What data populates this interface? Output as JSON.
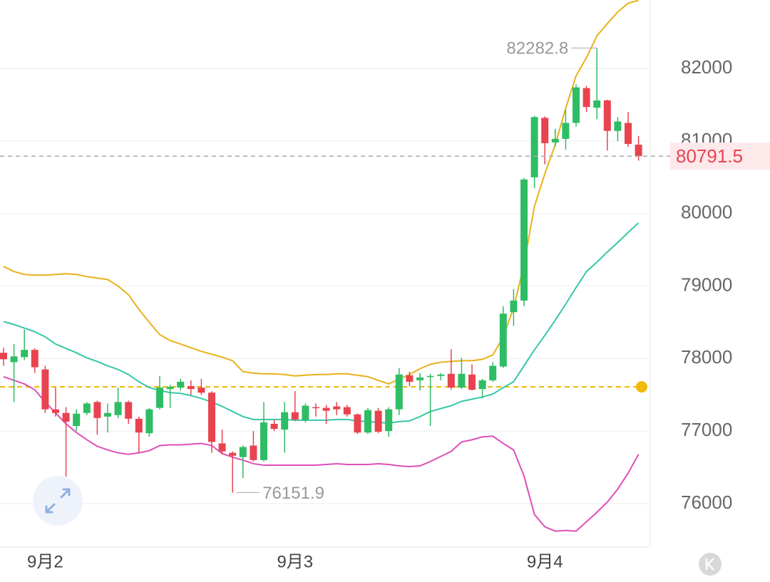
{
  "chart_data": {
    "type": "candlestick",
    "categories": [
      null,
      null,
      null,
      null,
      "9月2",
      null,
      null,
      null,
      null,
      null,
      null,
      null,
      null,
      null,
      null,
      null,
      null,
      null,
      null,
      null,
      null,
      null,
      null,
      null,
      null,
      null,
      null,
      null,
      "9月3",
      null,
      null,
      null,
      null,
      null,
      null,
      null,
      null,
      null,
      null,
      null,
      null,
      null,
      null,
      null,
      null,
      null,
      null,
      null,
      null,
      null,
      null,
      null,
      "9月4",
      null,
      null,
      null,
      null,
      null,
      null,
      null,
      null,
      null
    ],
    "open": [
      78080,
      77950,
      78020,
      78120,
      77850,
      77300,
      77250,
      77070,
      77250,
      77400,
      77200,
      77220,
      77400,
      77170,
      76970,
      77320,
      77580,
      77600,
      77620,
      77600,
      77530,
      76830,
      76700,
      76640,
      76800,
      76600,
      77100,
      77020,
      77260,
      77150,
      77330,
      77320,
      77340,
      77330,
      77230,
      76980,
      77280,
      77000,
      77300,
      77770,
      77700,
      77750,
      77760,
      77790,
      77600,
      77780,
      77580,
      77700,
      77890,
      78640,
      78800,
      80500,
      81320,
      80980,
      81030,
      81250,
      81730,
      81460,
      81560,
      81140,
      81250,
      80950
    ],
    "high": [
      78150,
      78200,
      78400,
      78140,
      77900,
      77600,
      77330,
      77300,
      77400,
      77420,
      77380,
      77600,
      77420,
      77200,
      77320,
      77760,
      77640,
      77720,
      77700,
      77720,
      77550,
      77020,
      76720,
      76800,
      77000,
      77400,
      77160,
      77400,
      77550,
      77380,
      77380,
      77360,
      77400,
      77360,
      77240,
      77320,
      77320,
      77330,
      77870,
      77820,
      77800,
      77790,
      77800,
      78130,
      78010,
      77920,
      77720,
      77950,
      78720,
      78960,
      80490,
      81350,
      81340,
      81170,
      81430,
      81780,
      81760,
      82282.8,
      81570,
      81330,
      81400,
      81070
    ],
    "low": [
      77900,
      77400,
      77980,
      77800,
      77250,
      77200,
      76370,
      77000,
      77220,
      76950,
      76980,
      77180,
      77100,
      76700,
      76920,
      77300,
      77320,
      77560,
      77500,
      77500,
      76700,
      76680,
      76151.9,
      76350,
      76580,
      76580,
      77000,
      76700,
      77140,
      77120,
      77200,
      77100,
      77220,
      77200,
      76960,
      76960,
      76970,
      76920,
      77220,
      77620,
      77560,
      77070,
      77700,
      77570,
      77580,
      77560,
      77450,
      77680,
      77870,
      78450,
      78720,
      80350,
      80680,
      80920,
      80880,
      81200,
      81400,
      81300,
      80870,
      81000,
      80920,
      80730
    ],
    "close": [
      77990,
      78030,
      78120,
      77880,
      77300,
      77250,
      77130,
      77240,
      77380,
      77180,
      77250,
      77400,
      77170,
      76980,
      77300,
      77600,
      77610,
      77680,
      77580,
      77530,
      76850,
      76720,
      76660,
      76780,
      76600,
      77120,
      77030,
      77260,
      77160,
      77350,
      77320,
      77280,
      77300,
      77230,
      76980,
      77290,
      76990,
      77300,
      77780,
      77680,
      77740,
      77760,
      77780,
      77600,
      77790,
      77570,
      77700,
      77900,
      78620,
      78800,
      80470,
      81330,
      80970,
      81030,
      81250,
      81740,
      81470,
      81560,
      81140,
      81270,
      80960,
      80791.5
    ],
    "up_color": "#2ebd64",
    "down_color": "#e8434f",
    "overlays": [
      {
        "color": "#e8b21a",
        "values": [
          79270,
          79200,
          79160,
          79150,
          79150,
          79160,
          79170,
          79160,
          79130,
          79110,
          79090,
          79000,
          78880,
          78680,
          78500,
          78330,
          78250,
          78200,
          78150,
          78100,
          78060,
          78020,
          77970,
          77820,
          77800,
          77790,
          77790,
          77780,
          77760,
          77770,
          77780,
          77780,
          77790,
          77790,
          77770,
          77750,
          77700,
          77650,
          77720,
          77780,
          77860,
          77920,
          77950,
          77960,
          77970,
          77970,
          77990,
          78050,
          78300,
          78700,
          79300,
          80100,
          80550,
          80950,
          81450,
          81900,
          82150,
          82450,
          82620,
          82780,
          82900,
          82940
        ]
      },
      {
        "color": "#35c7a8",
        "values": [
          78510,
          78470,
          78420,
          78370,
          78300,
          78200,
          78140,
          78080,
          78010,
          77960,
          77900,
          77850,
          77780,
          77680,
          77600,
          77560,
          77530,
          77520,
          77490,
          77450,
          77400,
          77340,
          77270,
          77200,
          77160,
          77160,
          77160,
          77160,
          77150,
          77150,
          77150,
          77150,
          77160,
          77160,
          77140,
          77130,
          77120,
          77110,
          77130,
          77140,
          77200,
          77270,
          77310,
          77350,
          77410,
          77440,
          77470,
          77510,
          77600,
          77680,
          77900,
          78120,
          78320,
          78530,
          78750,
          78980,
          79200,
          79330,
          79470,
          79600,
          79740,
          79870
        ]
      },
      {
        "color": "#dd4fb8",
        "values": [
          77750,
          77700,
          77650,
          77570,
          77400,
          77250,
          77100,
          76980,
          76880,
          76790,
          76740,
          76700,
          76680,
          76700,
          76730,
          76800,
          76810,
          76810,
          76820,
          76830,
          76800,
          76690,
          76640,
          76600,
          76550,
          76530,
          76530,
          76530,
          76530,
          76530,
          76530,
          76540,
          76550,
          76540,
          76540,
          76540,
          76550,
          76540,
          76520,
          76510,
          76520,
          76580,
          76650,
          76720,
          76850,
          76880,
          76920,
          76930,
          76830,
          76740,
          76380,
          75850,
          75680,
          75620,
          75630,
          75620,
          75750,
          75880,
          76020,
          76200,
          76420,
          76680
        ]
      }
    ],
    "reference_line": {
      "value": 77610,
      "color": "#f0b90b"
    },
    "last_price": 80791.5,
    "annotations": [
      "82282.8",
      "76151.9"
    ],
    "ylim": [
      75400,
      82945
    ],
    "yticks": [
      76000,
      77000,
      78000,
      79000,
      80000,
      81000,
      82000
    ],
    "grid": true
  }
}
